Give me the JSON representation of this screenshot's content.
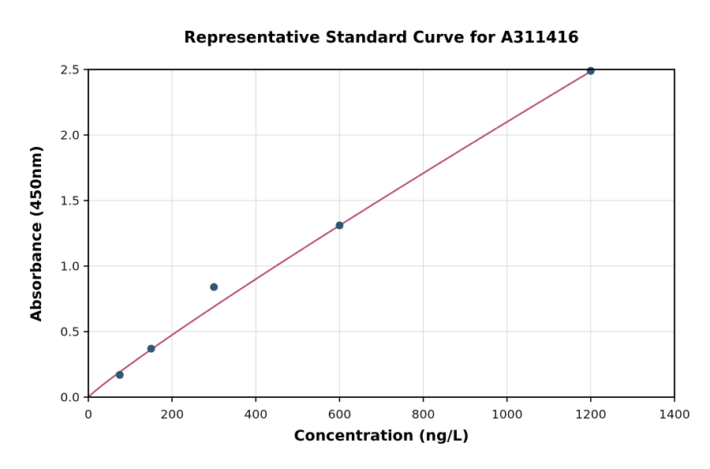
{
  "chart_data": {
    "type": "scatter",
    "title": "Representative Standard Curve for A311416",
    "xlabel": "Concentration (ng/L)",
    "ylabel": "Absorbance (450nm)",
    "xlim": [
      0,
      1400
    ],
    "ylim": [
      0,
      2.5
    ],
    "x_ticks": [
      0,
      200,
      400,
      600,
      800,
      1000,
      1200,
      1400
    ],
    "x_tick_labels": [
      "0",
      "200",
      "400",
      "600",
      "800",
      "1000",
      "1200",
      "1400"
    ],
    "y_ticks": [
      0,
      0.5,
      1,
      1.5,
      2,
      2.5
    ],
    "y_tick_labels": [
      "0.0",
      "0.5",
      "1.0",
      "1.5",
      "2.0",
      "2.5"
    ],
    "grid": true,
    "legend": "none",
    "points": [
      {
        "x": 75,
        "y": 0.17
      },
      {
        "x": 150,
        "y": 0.37
      },
      {
        "x": 300,
        "y": 0.84
      },
      {
        "x": 600,
        "y": 1.31
      },
      {
        "x": 1200,
        "y": 2.49
      }
    ],
    "fit_curve": {
      "type": "power",
      "a": 0.00355,
      "b": 0.924,
      "x_start": 3,
      "x_end": 1204
    },
    "colors": {
      "point": "#2f5672",
      "curve": "#b3496c",
      "grid": "#d9d9d9",
      "axis": "#000000",
      "text": "#111111",
      "background": "#ffffff"
    }
  }
}
